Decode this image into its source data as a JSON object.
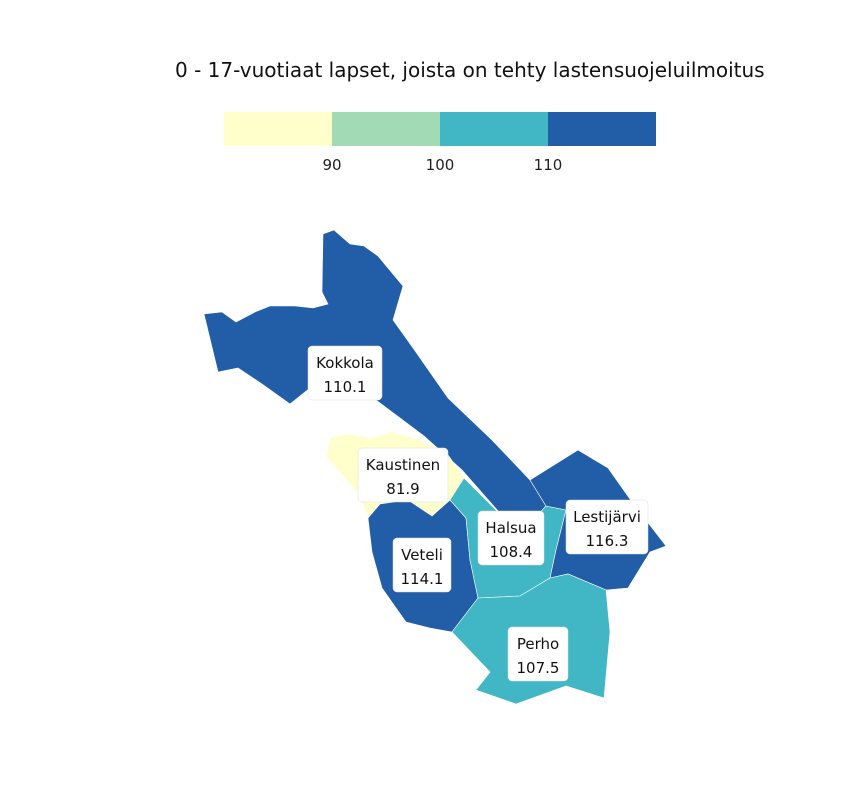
{
  "title": "0 - 17-vuotiaat lapset, joista on tehty lastensuojeluilmoitus",
  "legend": {
    "thresholds": [
      "90",
      "100",
      "110"
    ],
    "colors": [
      "#ffffcc",
      "#a1dab4",
      "#41b6c4",
      "#225ea8"
    ]
  },
  "chart_data": {
    "type": "choropleth",
    "title": "0 - 17-vuotiaat lapset, joista on tehty lastensuojeluilmoitus",
    "bins": [
      90,
      100,
      110
    ],
    "regions": [
      {
        "name": "Kokkola",
        "value": "110.1",
        "color": "#225ea8"
      },
      {
        "name": "Kaustinen",
        "value": "81.9",
        "color": "#ffffcc"
      },
      {
        "name": "Halsua",
        "value": "108.4",
        "color": "#41b6c4"
      },
      {
        "name": "Lestijärvi",
        "value": "116.3",
        "color": "#225ea8"
      },
      {
        "name": "Veteli",
        "value": "114.1",
        "color": "#225ea8"
      },
      {
        "name": "Perho",
        "value": "107.5",
        "color": "#41b6c4"
      }
    ]
  }
}
